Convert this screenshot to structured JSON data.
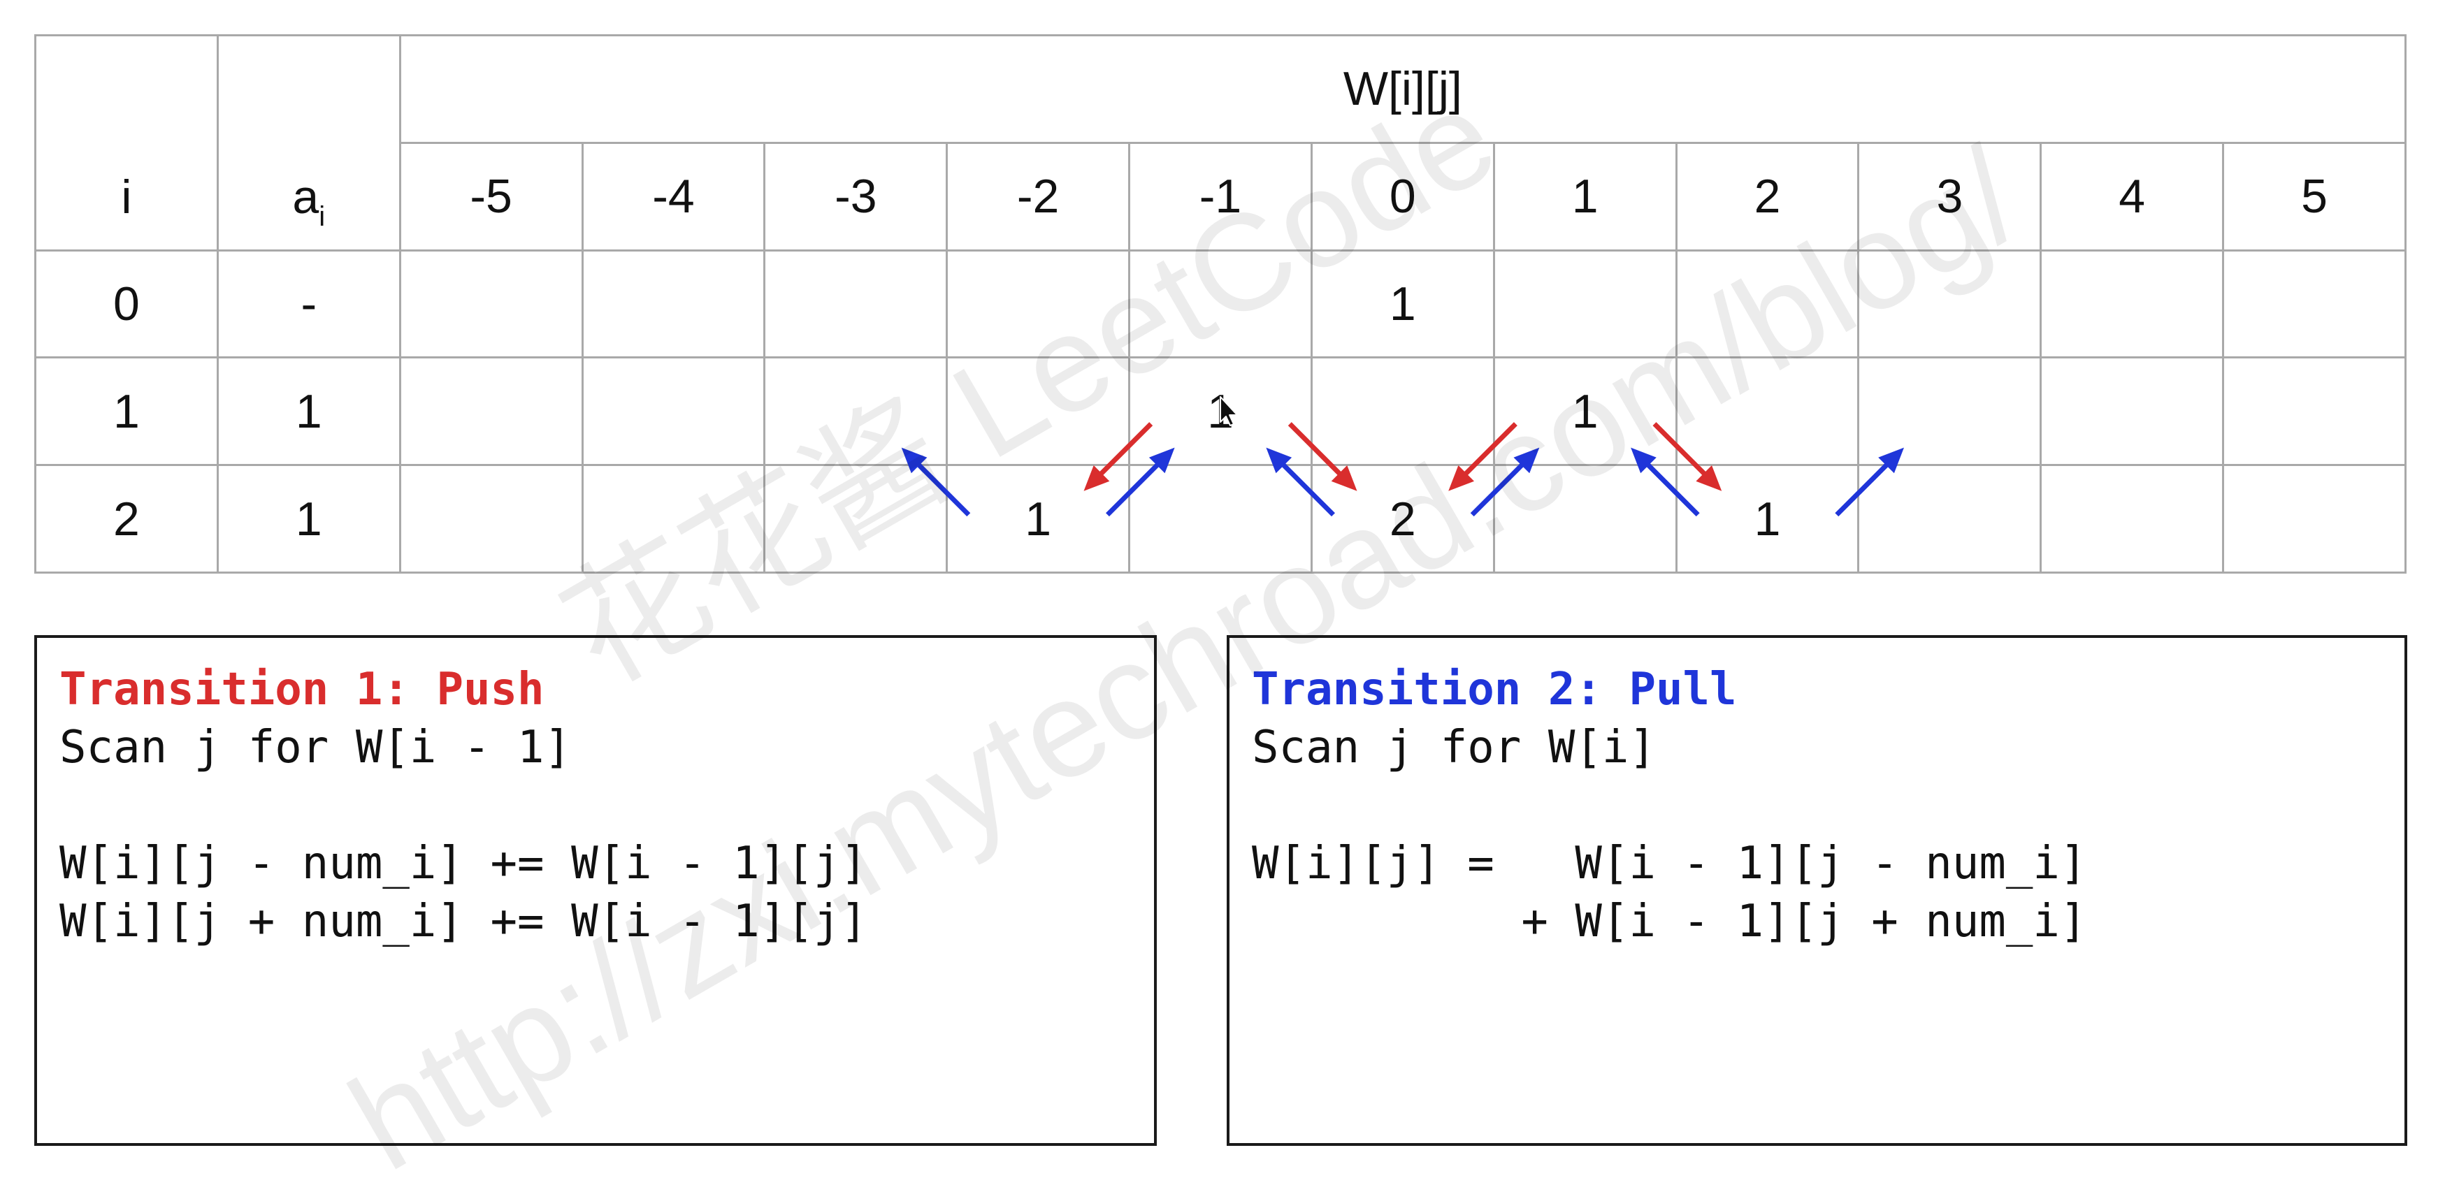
{
  "table": {
    "header_i": "i",
    "header_a": "a",
    "header_a_sub": "i",
    "header_w": "W[i][j]",
    "j_values": [
      "-5",
      "-4",
      "-3",
      "-2",
      "-1",
      "0",
      "1",
      "2",
      "3",
      "4",
      "5"
    ],
    "rows": [
      {
        "i": "0",
        "a": "-",
        "w": [
          null,
          null,
          null,
          null,
          null,
          "1",
          null,
          null,
          null,
          null,
          null
        ]
      },
      {
        "i": "1",
        "a": "1",
        "w": [
          null,
          null,
          null,
          null,
          "1",
          null,
          "1",
          null,
          null,
          null,
          null
        ]
      },
      {
        "i": "2",
        "a": "1",
        "w": [
          null,
          null,
          null,
          "1",
          null,
          "2",
          null,
          "1",
          null,
          null,
          null
        ]
      }
    ]
  },
  "arrows": [
    {
      "type": "pull",
      "from": {
        "i": 2,
        "j": -2
      },
      "to": {
        "i": 1,
        "j": -3
      }
    },
    {
      "type": "push",
      "from": {
        "i": 1,
        "j": -1
      },
      "to": {
        "i": 2,
        "j": -2
      }
    },
    {
      "type": "pull",
      "from": {
        "i": 2,
        "j": -2
      },
      "to": {
        "i": 1,
        "j": -1
      }
    },
    {
      "type": "push",
      "from": {
        "i": 1,
        "j": -1
      },
      "to": {
        "i": 2,
        "j": 0
      }
    },
    {
      "type": "pull",
      "from": {
        "i": 2,
        "j": 0
      },
      "to": {
        "i": 1,
        "j": -1
      }
    },
    {
      "type": "push",
      "from": {
        "i": 1,
        "j": 1
      },
      "to": {
        "i": 2,
        "j": 0
      }
    },
    {
      "type": "pull",
      "from": {
        "i": 2,
        "j": 0
      },
      "to": {
        "i": 1,
        "j": 1
      }
    },
    {
      "type": "pull",
      "from": {
        "i": 2,
        "j": 2
      },
      "to": {
        "i": 1,
        "j": 1
      }
    },
    {
      "type": "push",
      "from": {
        "i": 1,
        "j": 1
      },
      "to": {
        "i": 2,
        "j": 2
      }
    },
    {
      "type": "pull",
      "from": {
        "i": 2,
        "j": 2
      },
      "to": {
        "i": 1,
        "j": 3
      }
    }
  ],
  "colors": {
    "push": "#d92d2d",
    "pull": "#1f35d9",
    "grid": "#a9a9a9",
    "text": "#111111"
  },
  "push_box": {
    "title": "Transition 1: Push",
    "scan": "Scan j for W[i - 1]",
    "formula": [
      "W[i][j - num_i] += W[i - 1][j]",
      "W[i][j + num_i] += W[i - 1][j]"
    ]
  },
  "pull_box": {
    "title": "Transition 2: Pull",
    "scan": "Scan j for W[i]",
    "formula": [
      "W[i][j] =   W[i - 1][j - num_i]",
      "          + W[i - 1][j + num_i]"
    ]
  },
  "watermark": {
    "line1": "花花酱 LeetCode",
    "line2": "http://zxi.mytechroad.com/blog/"
  },
  "cursor": {
    "icon": "mouse-pointer-icon"
  }
}
